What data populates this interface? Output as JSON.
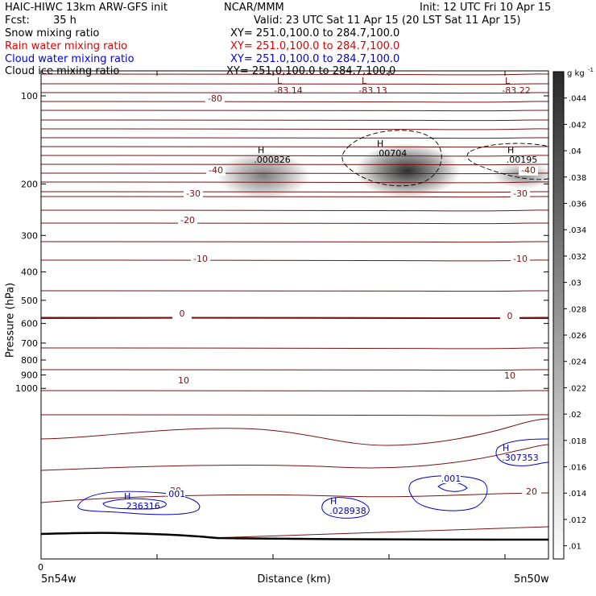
{
  "header": {
    "title_left": "HAIC-HIWC 13km ARW-GFS init",
    "title_mid": "NCAR/MMM",
    "init": "Init: 12 UTC Fri 10 Apr 15",
    "fcst_label": "Fcst:",
    "fcst_value": "35 h",
    "valid": "Valid: 23 UTC Sat 11 Apr 15 (20 LST Sat 11 Apr 15)"
  },
  "fields": [
    {
      "name": "Snow mixing ratio",
      "xy": "XY= 251.0,100.0 to 284.7,100.0",
      "color": "#000000"
    },
    {
      "name": "Rain water mixing ratio",
      "xy": "XY= 251.0,100.0 to 284.7,100.0",
      "color": "#e00000"
    },
    {
      "name": "Cloud water mixing ratio",
      "xy": "XY= 251.0,100.0 to 284.7,100.0",
      "color": "#0000e0"
    },
    {
      "name": "Cloud ice mixing ratio",
      "xy": "XY= 251.0,100.0 to 284.7,100.0",
      "color": "#000000"
    }
  ],
  "colors": {
    "temperature": "#7a1010",
    "cloud_water": "#0000cc",
    "cloud_ice": "#000000",
    "snow_shade": "#000000",
    "ground": "#000000"
  },
  "chart_data": {
    "type": "contour",
    "xlabel": "Distance (km)",
    "ylabel": "Pressure (hPa)",
    "x_tick_labels": [
      "0"
    ],
    "x_left_label": "5n54w",
    "x_right_label": "5n50w",
    "y_ticks": [
      100,
      200,
      300,
      400,
      500,
      600,
      700,
      800,
      900,
      1000
    ],
    "ylim": [
      1050,
      50
    ],
    "y_scale": "log",
    "colorbar": {
      "unit": "g kg",
      "unit_exp": "-1",
      "ticks": [
        ".01",
        ".012",
        ".014",
        ".016",
        ".018",
        ".02",
        ".022",
        ".024",
        ".026",
        ".028",
        ".03",
        ".032",
        ".034",
        ".036",
        ".038",
        ".04",
        ".042",
        ".044"
      ],
      "range": [
        0.009,
        0.046
      ]
    },
    "temperature_labels": [
      "-80",
      "-40",
      "-40",
      "-30",
      "-30",
      "-20",
      "-10",
      "-10",
      "0",
      "0",
      "10",
      "10",
      "20",
      "20"
    ],
    "low_markers": [
      {
        "letter": "L",
        "value": "-83.14"
      },
      {
        "letter": "L",
        "value": "-83.13"
      },
      {
        "letter": "L",
        "value": "-83.22"
      }
    ],
    "ice_maxima": [
      {
        "letter": "H",
        "value": ".000826"
      },
      {
        "letter": "H",
        "value": ".00704"
      },
      {
        "letter": "H",
        "value": ".00195"
      }
    ],
    "cloud_water_maxima": [
      {
        "letter": "H",
        "value": ".236316"
      },
      {
        "letter": "H",
        "value": ".028938"
      },
      {
        "letter": "H",
        "value": ".307353"
      }
    ],
    "cloud_water_contour_labels": [
      ".001",
      ".001"
    ]
  }
}
